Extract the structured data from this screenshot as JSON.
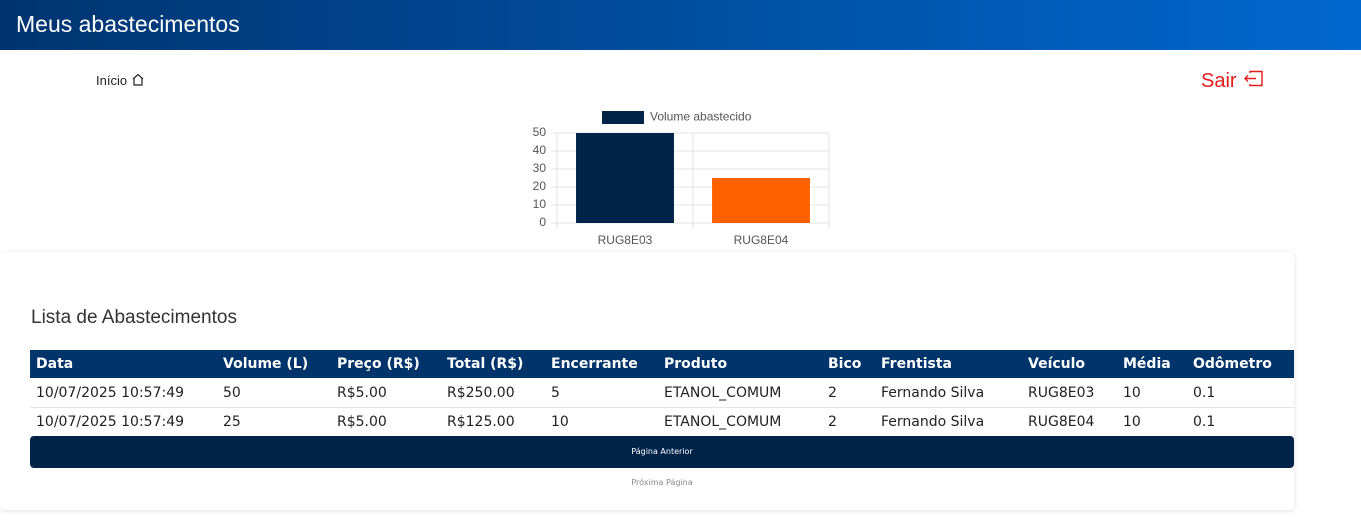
{
  "header": {
    "title": "Meus abastecimentos"
  },
  "nav": {
    "home": "Início",
    "logout": "Sair"
  },
  "chart_data": {
    "type": "bar",
    "categories": [
      "RUG8E03",
      "RUG8E04"
    ],
    "series": [
      {
        "name": "Volume abastecido",
        "color": "#00234a",
        "colors": [
          "#00234a",
          "#ff6000"
        ],
        "values": [
          50,
          25
        ]
      }
    ],
    "ylim": [
      0,
      50
    ],
    "yticks": [
      0,
      10,
      20,
      30,
      40,
      50
    ],
    "grid": true
  },
  "table": {
    "title": "Lista de Abastecimentos",
    "columns": [
      "Data",
      "Volume (L)",
      "Preço (R$)",
      "Total (R$)",
      "Encerrante",
      "Produto",
      "Bico",
      "Frentista",
      "Veículo",
      "Média",
      "Odômetro"
    ],
    "rows": [
      [
        "10/07/2025 10:57:49",
        "50",
        "R$5.00",
        "R$250.00",
        "5",
        "ETANOL_COMUM",
        "2",
        "Fernando Silva",
        "RUG8E03",
        "10",
        "0.1"
      ],
      [
        "10/07/2025 10:57:49",
        "25",
        "R$5.00",
        "R$125.00",
        "10",
        "ETANOL_COMUM",
        "2",
        "Fernando Silva",
        "RUG8E04",
        "10",
        "0.1"
      ]
    ]
  },
  "pagination": {
    "previous": "Página Anterior",
    "next": "Próxima Página"
  }
}
